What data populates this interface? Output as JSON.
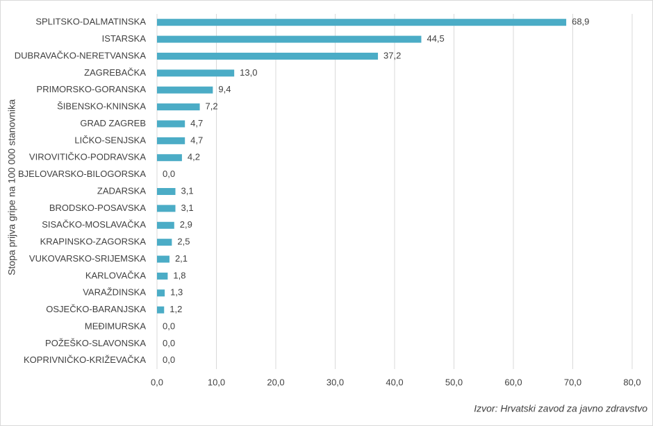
{
  "chart_data": {
    "type": "hbar",
    "y_label": "Stopa prijva gripe na 100 000 stanovnika",
    "source": "Izvor: Hrvatski zavod za javno zdravstvo",
    "categories": [
      "SPLITSKO-DALMATINSKA",
      "ISTARSKA",
      "DUBRAVAČKO-NERETVANSKA",
      "ZAGREBAČKA",
      "PRIMORSKO-GORANSKA",
      "ŠIBENSKO-KNINSKA",
      "GRAD ZAGREB",
      "LIČKO-SENJSKA",
      "VIROVITIČKO-PODRAVSKA",
      "BJELOVARSKO-BILOGORSKA",
      "ZADARSKA",
      "BRODSKO-POSAVSKA",
      "SISAČKO-MOSLAVAČKA",
      "KRAPINSKO-ZAGORSKA",
      "VUKOVARSKO-SRIJEMSKA",
      "KARLOVAČKA",
      "VARAŽDINSKA",
      "OSJEČKO-BARANJSKA",
      "MEĐIMURSKA",
      "POŽEŠKO-SLAVONSKA",
      "KOPRIVNIČKO-KRIŽEVAČKA"
    ],
    "values": [
      68.9,
      44.5,
      37.2,
      13.0,
      9.4,
      7.2,
      4.7,
      4.7,
      4.2,
      0.0,
      3.1,
      3.1,
      2.9,
      2.5,
      2.1,
      1.8,
      1.3,
      1.2,
      0.0,
      0.0,
      0.0
    ],
    "value_labels": [
      "68,9",
      "44,5",
      "37,2",
      "13,0",
      "9,4",
      "7,2",
      "4,7",
      "4,7",
      "4,2",
      "0,0",
      "3,1",
      "3,1",
      "2,9",
      "2,5",
      "2,1",
      "1,8",
      "1,3",
      "1,2",
      "0,0",
      "0,0",
      "0,0"
    ],
    "color": "#4bacc6",
    "xlim": [
      0,
      80
    ],
    "xticks": [
      {
        "value": 0,
        "label": "0,0"
      },
      {
        "value": 10,
        "label": "10,0"
      },
      {
        "value": 20,
        "label": "20,0"
      },
      {
        "value": 30,
        "label": "30,0"
      },
      {
        "value": 40,
        "label": "40,0"
      },
      {
        "value": 50,
        "label": "50,0"
      },
      {
        "value": 60,
        "label": "60,0"
      },
      {
        "value": 70,
        "label": "70,0"
      },
      {
        "value": 80,
        "label": "80,0"
      }
    ],
    "grid": true
  }
}
